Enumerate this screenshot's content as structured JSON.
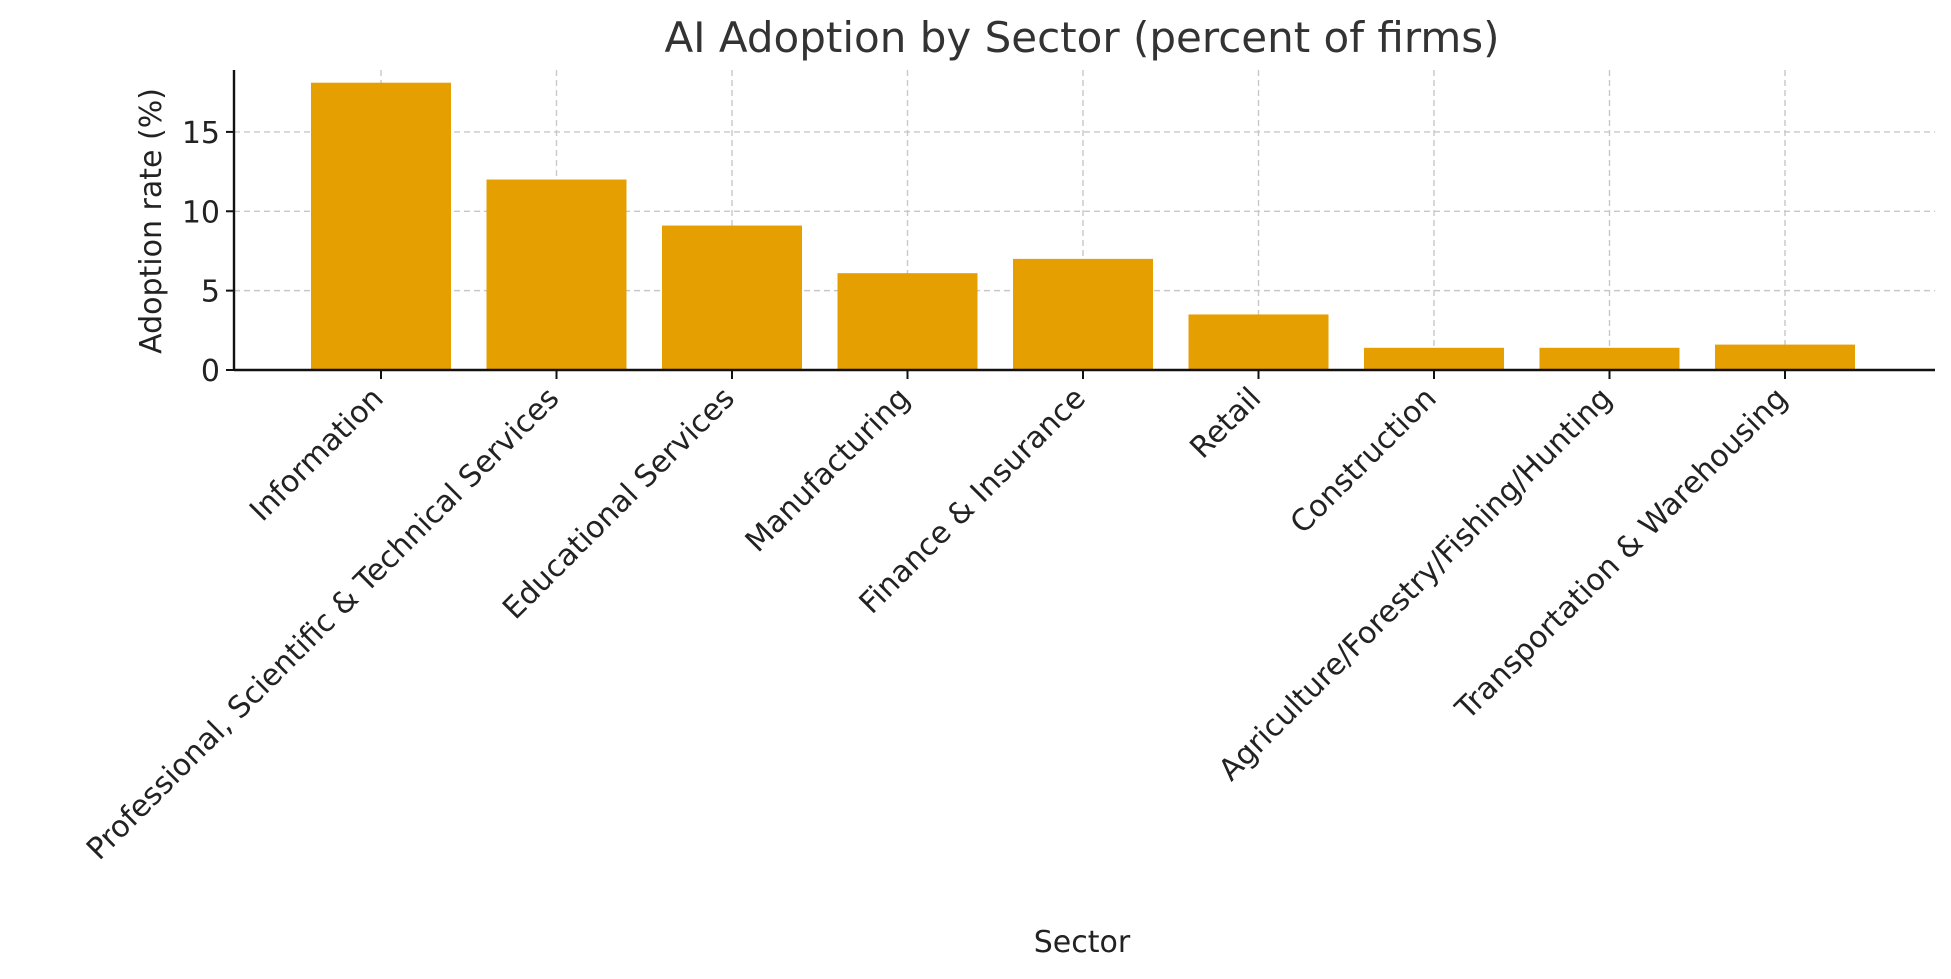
{
  "chart_data": {
    "type": "bar",
    "title": "AI Adoption by Sector (percent of firms)",
    "xlabel": "Sector",
    "ylabel": "Adoption rate (%)",
    "categories": [
      "Information",
      "Professional, Scientific & Technical Services",
      "Educational Services",
      "Manufacturing",
      "Finance & Insurance",
      "Retail",
      "Construction",
      "Agriculture/Forestry/Fishing/Hunting",
      "Transportation & Warehousing"
    ],
    "values": [
      18.1,
      12.0,
      9.1,
      6.1,
      7.0,
      3.5,
      1.4,
      1.4,
      1.6
    ],
    "ylim": [
      0,
      18.9
    ],
    "yticks": [
      0,
      5,
      10,
      15
    ],
    "grid": true,
    "bar_color": "#E69F00"
  }
}
